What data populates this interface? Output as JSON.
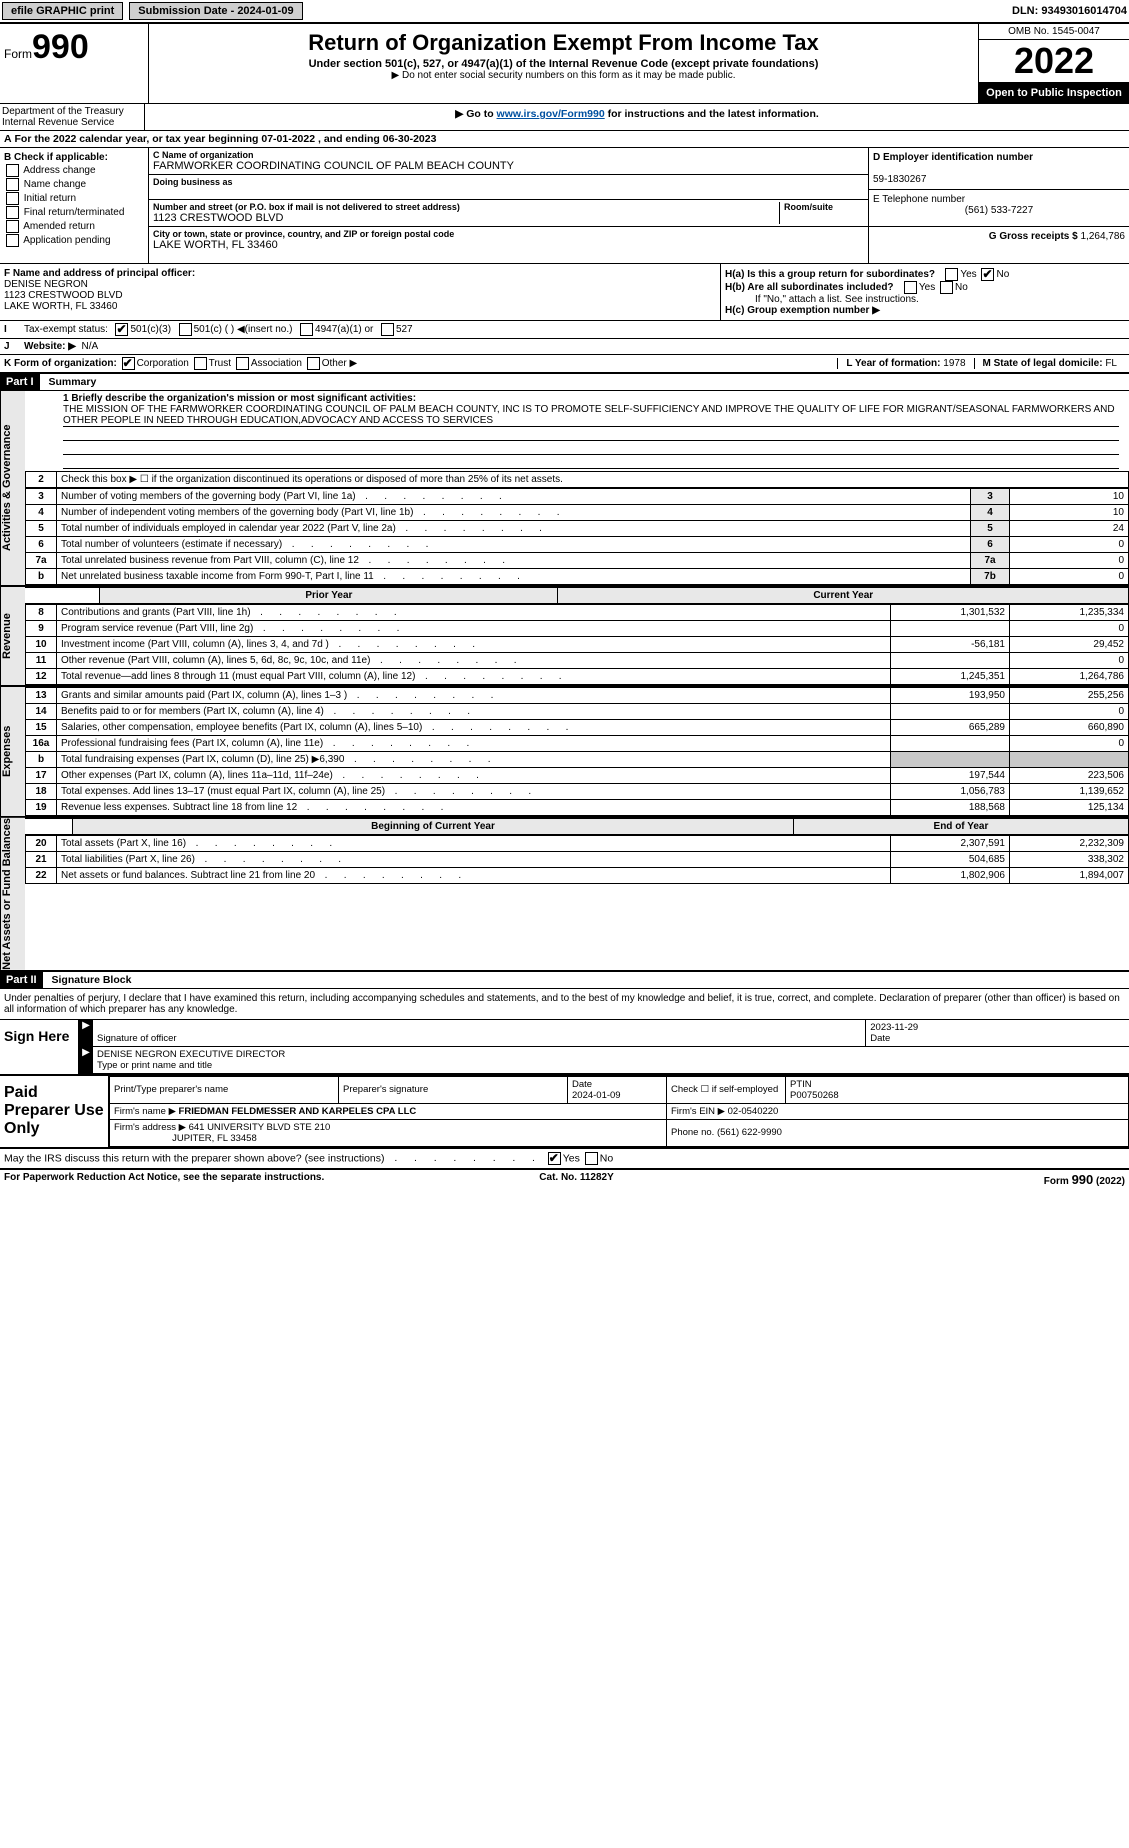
{
  "topbar": {
    "efile": "efile GRAPHIC print",
    "sub_label": "Submission Date - 2024-01-09",
    "dln": "DLN: 93493016014704"
  },
  "header": {
    "form_word": "Form",
    "form_num": "990",
    "title": "Return of Organization Exempt From Income Tax",
    "sub1": "Under section 501(c), 527, or 4947(a)(1) of the Internal Revenue Code (except private foundations)",
    "sub2": "▶ Do not enter social security numbers on this form as it may be made public.",
    "sub3_pre": "▶ Go to ",
    "sub3_link": "www.irs.gov/Form990",
    "sub3_post": " for instructions and the latest information.",
    "omb": "OMB No. 1545-0047",
    "year": "2022",
    "open": "Open to Public Inspection",
    "dept": "Department of the Treasury",
    "irs": "Internal Revenue Service"
  },
  "line_a": "For the 2022 calendar year, or tax year beginning 07-01-2022    , and ending 06-30-2023",
  "check_b": {
    "title": "B Check if applicable:",
    "items": [
      "Address change",
      "Name change",
      "Initial return",
      "Final return/terminated",
      "Amended return",
      "Application pending"
    ]
  },
  "org": {
    "name_label": "C Name of organization",
    "name": "FARMWORKER COORDINATING COUNCIL OF PALM BEACH COUNTY",
    "dba_label": "Doing business as",
    "dba": "",
    "street_label": "Number and street (or P.O. box if mail is not delivered to street address)",
    "room_label": "Room/suite",
    "street": "1123 CRESTWOOD BLVD",
    "city_label": "City or town, state or province, country, and ZIP or foreign postal code",
    "city": "LAKE WORTH, FL  33460"
  },
  "right_box": {
    "d_label": "D Employer identification number",
    "ein": "59-1830267",
    "e_label": "E Telephone number",
    "phone": "(561) 533-7227",
    "g_label": "G Gross receipts $",
    "gross": "1,264,786"
  },
  "f_box": {
    "label": "F  Name and address of principal officer:",
    "name": "DENISE NEGRON",
    "addr1": "1123 CRESTWOOD BLVD",
    "addr2": "LAKE WORTH, FL  33460"
  },
  "h_box": {
    "h_a": "H(a)  Is this a group return for subordinates?",
    "h_b": "H(b)  Are all subordinates included?",
    "h_b_note": "If \"No,\" attach a list. See instructions.",
    "h_c": "H(c)  Group exemption number ▶",
    "yes": "Yes",
    "no": "No"
  },
  "tax_status": {
    "i_label": "I",
    "label": "Tax-exempt status:",
    "opt1": "501(c)(3)",
    "opt2": "501(c) (  ) ◀(insert no.)",
    "opt3": "4947(a)(1) or",
    "opt4": "527"
  },
  "j": {
    "label": "J",
    "text": "Website: ▶",
    "val": "N/A"
  },
  "k": {
    "label": "K Form of organization:",
    "opts": [
      "Corporation",
      "Trust",
      "Association",
      "Other ▶"
    ]
  },
  "l": {
    "label": "L Year of formation:",
    "val": "1978"
  },
  "m": {
    "label": "M State of legal domicile:",
    "val": "FL"
  },
  "part1": {
    "hdr": "Part I",
    "title": "Summary",
    "line1_label": "1  Briefly describe the organization's mission or most significant activities:",
    "mission": "THE MISSION OF THE FARMWORKER COORDINATING COUNCIL OF PALM BEACH COUNTY, INC IS TO PROMOTE SELF-SUFFICIENCY AND IMPROVE THE QUALITY OF LIFE FOR MIGRANT/SEASONAL FARMWORKERS AND OTHER PEOPLE IN NEED THROUGH EDUCATION,ADVOCACY AND ACCESS TO SERVICES",
    "side_gov": "Activities & Governance",
    "side_rev": "Revenue",
    "side_exp": "Expenses",
    "side_net": "Net Assets or Fund Balances",
    "line2": "Check this box ▶ ☐  if the organization discontinued its operations or disposed of more than 25% of its net assets.",
    "gov_rows": [
      {
        "n": "3",
        "t": "Number of voting members of the governing body (Part VI, line 1a)",
        "b": "3",
        "v": "10"
      },
      {
        "n": "4",
        "t": "Number of independent voting members of the governing body (Part VI, line 1b)",
        "b": "4",
        "v": "10"
      },
      {
        "n": "5",
        "t": "Total number of individuals employed in calendar year 2022 (Part V, line 2a)",
        "b": "5",
        "v": "24"
      },
      {
        "n": "6",
        "t": "Total number of volunteers (estimate if necessary)",
        "b": "6",
        "v": "0"
      },
      {
        "n": "7a",
        "t": "Total unrelated business revenue from Part VIII, column (C), line 12",
        "b": "7a",
        "v": "0"
      },
      {
        "n": "b",
        "t": "Net unrelated business taxable income from Form 990-T, Part I, line 11",
        "b": "7b",
        "v": "0"
      }
    ],
    "col_prior": "Prior Year",
    "col_curr": "Current Year",
    "rev_rows": [
      {
        "n": "8",
        "t": "Contributions and grants (Part VIII, line 1h)",
        "p": "1,301,532",
        "c": "1,235,334"
      },
      {
        "n": "9",
        "t": "Program service revenue (Part VIII, line 2g)",
        "p": "",
        "c": "0"
      },
      {
        "n": "10",
        "t": "Investment income (Part VIII, column (A), lines 3, 4, and 7d )",
        "p": "-56,181",
        "c": "29,452"
      },
      {
        "n": "11",
        "t": "Other revenue (Part VIII, column (A), lines 5, 6d, 8c, 9c, 10c, and 11e)",
        "p": "",
        "c": "0"
      },
      {
        "n": "12",
        "t": "Total revenue—add lines 8 through 11 (must equal Part VIII, column (A), line 12)",
        "p": "1,245,351",
        "c": "1,264,786"
      }
    ],
    "exp_rows": [
      {
        "n": "13",
        "t": "Grants and similar amounts paid (Part IX, column (A), lines 1–3 )",
        "p": "193,950",
        "c": "255,256"
      },
      {
        "n": "14",
        "t": "Benefits paid to or for members (Part IX, column (A), line 4)",
        "p": "",
        "c": "0"
      },
      {
        "n": "15",
        "t": "Salaries, other compensation, employee benefits (Part IX, column (A), lines 5–10)",
        "p": "665,289",
        "c": "660,890"
      },
      {
        "n": "16a",
        "t": "Professional fundraising fees (Part IX, column (A), line 11e)",
        "p": "",
        "c": "0"
      },
      {
        "n": "b",
        "t": "Total fundraising expenses (Part IX, column (D), line 25) ▶6,390",
        "p": "shade",
        "c": "shade"
      },
      {
        "n": "17",
        "t": "Other expenses (Part IX, column (A), lines 11a–11d, 11f–24e)",
        "p": "197,544",
        "c": "223,506"
      },
      {
        "n": "18",
        "t": "Total expenses. Add lines 13–17 (must equal Part IX, column (A), line 25)",
        "p": "1,056,783",
        "c": "1,139,652"
      },
      {
        "n": "19",
        "t": "Revenue less expenses. Subtract line 18 from line 12",
        "p": "188,568",
        "c": "125,134"
      }
    ],
    "col_begin": "Beginning of Current Year",
    "col_end": "End of Year",
    "net_rows": [
      {
        "n": "20",
        "t": "Total assets (Part X, line 16)",
        "p": "2,307,591",
        "c": "2,232,309"
      },
      {
        "n": "21",
        "t": "Total liabilities (Part X, line 26)",
        "p": "504,685",
        "c": "338,302"
      },
      {
        "n": "22",
        "t": "Net assets or fund balances. Subtract line 21 from line 20",
        "p": "1,802,906",
        "c": "1,894,007"
      }
    ]
  },
  "part2": {
    "hdr": "Part II",
    "title": "Signature Block",
    "decl": "Under penalties of perjury, I declare that I have examined this return, including accompanying schedules and statements, and to the best of my knowledge and belief, it is true, correct, and complete. Declaration of preparer (other than officer) is based on all information of which preparer has any knowledge.",
    "sign_here": "Sign Here",
    "sig_officer": "Signature of officer",
    "date": "Date",
    "sig_date": "2023-11-29",
    "name_title_label": "Type or print name and title",
    "name_title": "DENISE NEGRON  EXECUTIVE DIRECTOR",
    "paid": "Paid Preparer Use Only",
    "prep_name_label": "Print/Type preparer's name",
    "prep_sig_label": "Preparer's signature",
    "prep_date_label": "Date",
    "prep_date": "2024-01-09",
    "self_emp": "Check ☐ if self-employed",
    "ptin_label": "PTIN",
    "ptin": "P00750268",
    "firm_name_label": "Firm's name    ▶",
    "firm_name": "FRIEDMAN FELDMESSER AND KARPELES CPA LLC",
    "firm_ein_label": "Firm's EIN ▶",
    "firm_ein": "02-0540220",
    "firm_addr_label": "Firm's address ▶",
    "firm_addr1": "641 UNIVERSITY BLVD STE 210",
    "firm_addr2": "JUPITER, FL  33458",
    "firm_phone_label": "Phone no.",
    "firm_phone": "(561) 622-9990",
    "discuss": "May the IRS discuss this return with the preparer shown above? (see instructions)"
  },
  "footer": {
    "left": "For Paperwork Reduction Act Notice, see the separate instructions.",
    "mid": "Cat. No. 11282Y",
    "right": "Form 990 (2022)"
  },
  "colors": {
    "link": "#0050a0",
    "shade": "#c8c8c8"
  }
}
